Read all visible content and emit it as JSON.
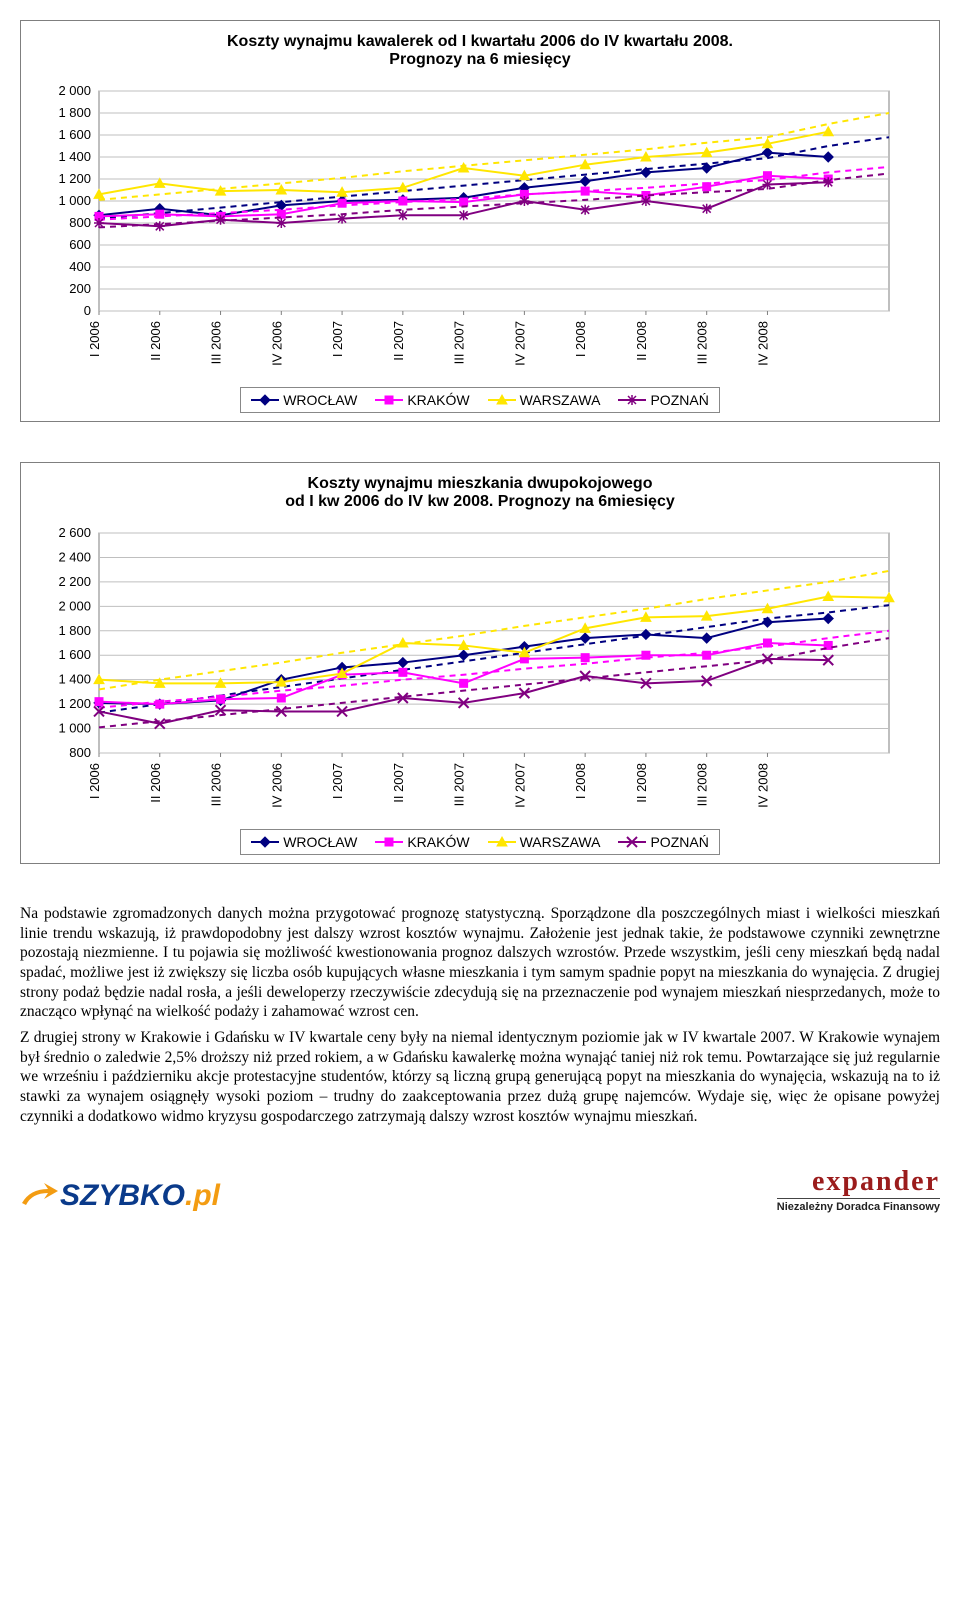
{
  "chart1": {
    "type": "line",
    "title_line1": "Koszty wynajmu kawalerek od I kwartału 2006 do IV kwartału 2008.",
    "title_line2": "Prognozy na 6 miesięcy",
    "title_fontsize": 16,
    "categories": [
      "I 2006",
      "II 2006",
      "III 2006",
      "IV 2006",
      "I 2007",
      "II 2007",
      "III 2007",
      "IV 2007",
      "I 2008",
      "II 2008",
      "III 2008",
      "IV 2008"
    ],
    "ylim": [
      0,
      2000
    ],
    "ytick_step": 200,
    "yticks": [
      "0",
      "200",
      "400",
      "600",
      "800",
      "1 000",
      "1 200",
      "1 400",
      "1 600",
      "1 800",
      "2 000"
    ],
    "grid_color": "#bfbfbf",
    "background_color": "#ffffff",
    "series": {
      "WROCLAW": {
        "label": "WROCŁAW",
        "color": "#000080",
        "marker": "diamond",
        "values": [
          870,
          930,
          870,
          960,
          1000,
          1010,
          1030,
          1120,
          1180,
          1260,
          1300,
          1440,
          1400
        ],
        "trend": [
          840,
          890,
          940,
          990,
          1040,
          1090,
          1140,
          1190,
          1240,
          1290,
          1340,
          1390,
          1500,
          1580
        ]
      },
      "KRAKOW": {
        "label": "KRAKÓW",
        "color": "#ff00ff",
        "marker": "square",
        "values": [
          860,
          880,
          860,
          880,
          980,
          1000,
          990,
          1060,
          1090,
          1050,
          1130,
          1230,
          1200
        ],
        "trend": [
          830,
          860,
          890,
          920,
          960,
          990,
          1020,
          1060,
          1090,
          1120,
          1160,
          1190,
          1260,
          1310
        ]
      },
      "WARSZAWA": {
        "label": "WARSZAWA",
        "color": "#ffe600",
        "marker": "triangle",
        "values": [
          1060,
          1160,
          1090,
          1100,
          1080,
          1120,
          1300,
          1230,
          1330,
          1400,
          1440,
          1520,
          1630
        ],
        "trend": [
          1010,
          1060,
          1110,
          1160,
          1210,
          1270,
          1320,
          1370,
          1420,
          1470,
          1530,
          1580,
          1700,
          1800
        ]
      },
      "POZNAN": {
        "label": "POZNAŃ",
        "color": "#800080",
        "marker": "star",
        "values": [
          800,
          770,
          830,
          800,
          840,
          870,
          870,
          1000,
          920,
          1000,
          930,
          1150,
          1170
        ],
        "trend": [
          760,
          790,
          820,
          850,
          880,
          920,
          950,
          980,
          1010,
          1050,
          1080,
          1110,
          1190,
          1250
        ]
      }
    },
    "legend_order": [
      "WROCLAW",
      "KRAKOW",
      "WARSZAWA",
      "POZNAN"
    ]
  },
  "chart2": {
    "type": "line",
    "title_line1": "Koszty wynajmu mieszkania dwupokojowego",
    "title_line2": "od I kw 2006 do IV kw 2008. Prognozy na 6miesięcy",
    "title_fontsize": 16,
    "categories": [
      "I 2006",
      "II 2006",
      "III 2006",
      "IV 2006",
      "I 2007",
      "II 2007",
      "III 2007",
      "IV 2007",
      "I 2008",
      "II 2008",
      "III 2008",
      "IV 2008"
    ],
    "ylim": [
      800,
      2600
    ],
    "ytick_step": 200,
    "yticks": [
      "800",
      "1 000",
      "1 200",
      "1 400",
      "1 600",
      "1 800",
      "2 000",
      "2 200",
      "2 400",
      "2 600"
    ],
    "grid_color": "#bfbfbf",
    "background_color": "#ffffff",
    "series": {
      "WROCLAW": {
        "label": "WROCŁAW",
        "color": "#000080",
        "marker": "diamond",
        "values": [
          1210,
          1200,
          1230,
          1400,
          1500,
          1540,
          1600,
          1670,
          1740,
          1770,
          1740,
          1870,
          1900
        ],
        "trend": [
          1130,
          1200,
          1270,
          1340,
          1410,
          1480,
          1550,
          1620,
          1690,
          1760,
          1830,
          1900,
          1950,
          2010
        ]
      },
      "KRAKOW": {
        "label": "KRAKÓW",
        "color": "#ff00ff",
        "marker": "square",
        "values": [
          1220,
          1200,
          1240,
          1250,
          1440,
          1460,
          1370,
          1570,
          1580,
          1600,
          1600,
          1700,
          1680
        ],
        "trend": [
          1170,
          1220,
          1260,
          1310,
          1350,
          1400,
          1440,
          1490,
          1530,
          1580,
          1620,
          1670,
          1740,
          1800
        ]
      },
      "WARSZAWA": {
        "label": "WARSZAWA",
        "color": "#ffe600",
        "marker": "triangle",
        "values": [
          1400,
          1370,
          1370,
          1380,
          1450,
          1700,
          1680,
          1620,
          1820,
          1910,
          1920,
          1980,
          2080,
          2070
        ],
        "trend": [
          1320,
          1400,
          1470,
          1540,
          1620,
          1690,
          1760,
          1840,
          1910,
          1980,
          2060,
          2130,
          2200,
          2290
        ]
      },
      "POZNAN": {
        "label": "POZNAŃ",
        "color": "#800080",
        "marker": "x",
        "values": [
          1140,
          1040,
          1150,
          1140,
          1140,
          1250,
          1210,
          1290,
          1430,
          1370,
          1390,
          1570,
          1560
        ],
        "trend": [
          1010,
          1060,
          1110,
          1160,
          1210,
          1260,
          1310,
          1360,
          1410,
          1460,
          1510,
          1560,
          1660,
          1740
        ]
      }
    },
    "legend_order": [
      "WROCLAW",
      "KRAKOW",
      "WARSZAWA",
      "POZNAN"
    ]
  },
  "paragraphs": [
    "Na podstawie zgromadzonych danych można przygotować prognozę statystyczną. Sporządzone dla poszczególnych miast i wielkości mieszkań linie trendu wskazują, iż prawdopodobny jest dalszy wzrost kosztów wynajmu. Założenie jest jednak takie, że podstawowe czynniki zewnętrzne pozostają niezmienne. I tu pojawia się możliwość kwestionowania prognoz dalszych wzrostów. Przede wszystkim, jeśli ceny mieszkań będą nadal spadać, możliwe jest iż zwiększy się liczba osób kupujących własne mieszkania i tym samym spadnie popyt na mieszkania do wynajęcia. Z drugiej strony podaż będzie nadal rosła, a jeśli deweloperzy rzeczywiście zdecydują się na przeznaczenie pod wynajem mieszkań niesprzedanych, może to znacząco wpłynąć na wielkość podaży i zahamować wzrost cen.",
    "Z drugiej strony w Krakowie i Gdańsku w IV kwartale ceny były na niemal identycznym poziomie jak w IV kwartale 2007. W Krakowie wynajem był średnio o zaledwie 2,5% droższy niż przed rokiem, a w Gdańsku kawalerkę można wynająć taniej niż rok temu. Powtarzające się już regularnie we wrześniu i październiku akcje protestacyjne studentów, którzy są liczną grupą generującą popyt na mieszkania do wynajęcia, wskazują na to iż stawki za wynajem osiągnęły wysoki poziom – trudny do zaakceptowania przez dużą grupę najemców. Wydaje się, więc że opisane powyżej czynniki a dodatkowo widmo kryzysu gospodarczego zatrzymają dalszy wzrost kosztów wynajmu mieszkań."
  ],
  "logos": {
    "szybko": "SZYBKO",
    "szybko_pl": ".pl",
    "expander": "expander",
    "expander_sub": "Niezależny Doradca Finansowy"
  }
}
